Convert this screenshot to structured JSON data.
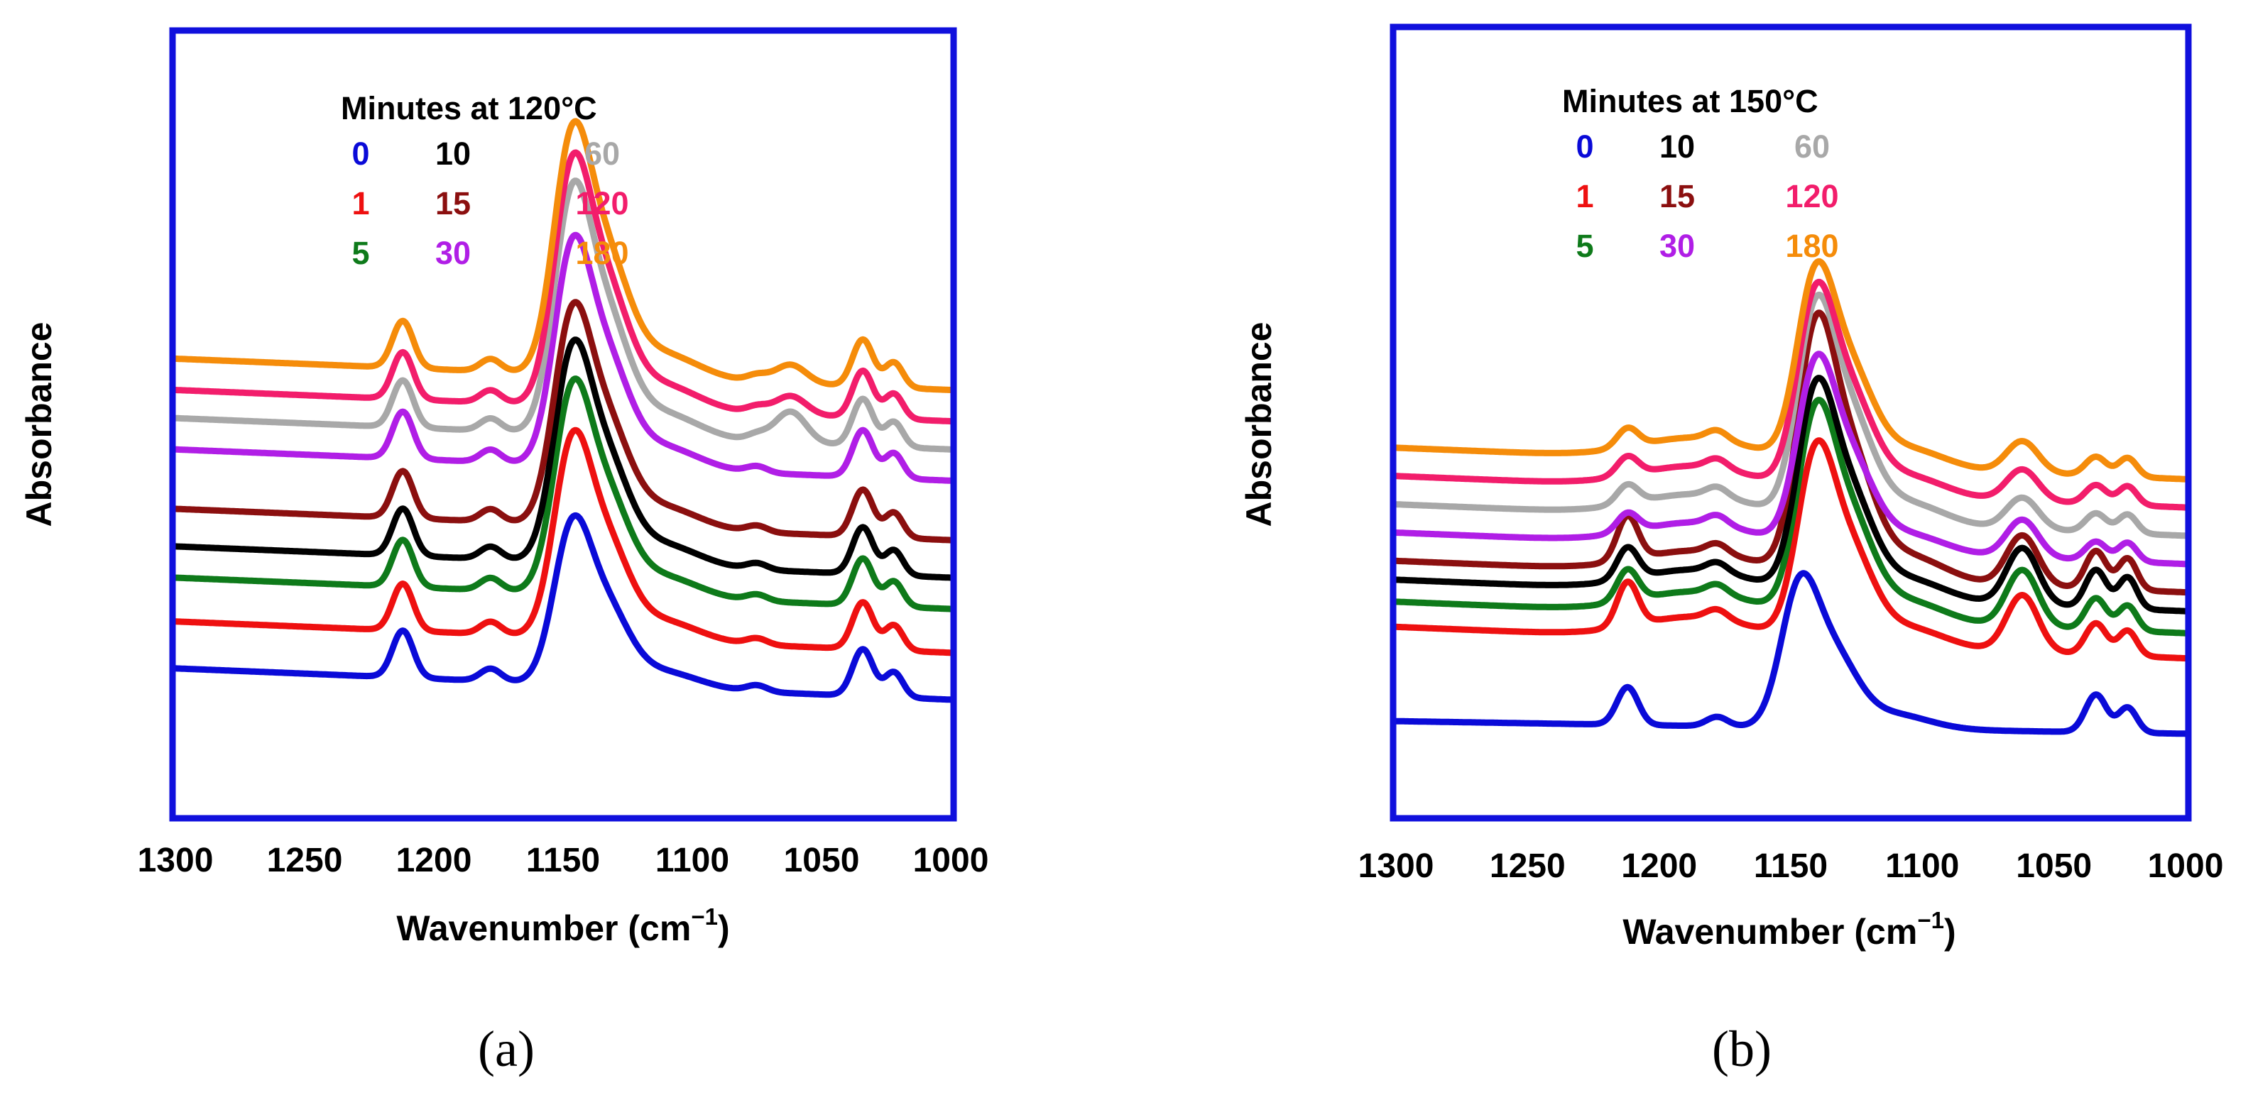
{
  "figure": {
    "colors": {
      "frame": "#1010dd",
      "legend_title": "#000000"
    }
  },
  "chart_data": [
    {
      "type": "line",
      "panel_label": "(a)",
      "title": "",
      "xlabel": "Wavenumber (cm⁻¹)",
      "xlabel_main": "Wavenumber (cm",
      "xlabel_sup": "−1",
      "xlabel_close": ")",
      "ylabel": "Absorbance",
      "xlim": [
        1300,
        1000
      ],
      "ylim": [
        0,
        12.5
      ],
      "x_ticks": [
        "1300",
        "1250",
        "1200",
        "1150",
        "1100",
        "1050",
        "1000"
      ],
      "y_ticks": [],
      "legend_title": "Minutes at 120°C",
      "legend_placement": "top-center",
      "series": [
        {
          "name": "0",
          "color": "#0a0ad8",
          "offset": 1.0,
          "base_start": 1.35,
          "base_end": 0.85,
          "peak_main": 2.2,
          "peak_1212": 0.75,
          "peak_1178": 0.2,
          "peak_1075": 0.1,
          "peak_1062": 0.0,
          "peak_1034": 0.75,
          "peak_1022": 0.4
        },
        {
          "name": "1",
          "color": "#ee1010",
          "offset": 1.75,
          "base_start": 1.35,
          "base_end": 0.85,
          "peak_main": 2.7,
          "peak_1212": 0.75,
          "peak_1178": 0.2,
          "peak_1075": 0.1,
          "peak_1062": 0.0,
          "peak_1034": 0.75,
          "peak_1022": 0.4
        },
        {
          "name": "5",
          "color": "#0e7a1a",
          "offset": 2.45,
          "base_start": 1.35,
          "base_end": 0.85,
          "peak_main": 2.8,
          "peak_1212": 0.75,
          "peak_1178": 0.2,
          "peak_1075": 0.1,
          "peak_1062": 0.0,
          "peak_1034": 0.75,
          "peak_1022": 0.4
        },
        {
          "name": "10",
          "color": "#000000",
          "offset": 2.95,
          "base_start": 1.35,
          "base_end": 0.85,
          "peak_main": 2.9,
          "peak_1212": 0.75,
          "peak_1178": 0.2,
          "peak_1075": 0.1,
          "peak_1062": 0.0,
          "peak_1034": 0.75,
          "peak_1022": 0.4
        },
        {
          "name": "15",
          "color": "#8b0f0f",
          "offset": 3.55,
          "base_start": 1.35,
          "base_end": 0.85,
          "peak_main": 2.9,
          "peak_1212": 0.75,
          "peak_1178": 0.2,
          "peak_1075": 0.1,
          "peak_1062": 0.0,
          "peak_1034": 0.75,
          "peak_1022": 0.4
        },
        {
          "name": "30",
          "color": "#b01ee6",
          "offset": 4.5,
          "base_start": 1.35,
          "base_end": 0.85,
          "peak_main": 3.0,
          "peak_1212": 0.75,
          "peak_1178": 0.2,
          "peak_1075": 0.1,
          "peak_1062": 0.0,
          "peak_1034": 0.75,
          "peak_1022": 0.4
        },
        {
          "name": "60",
          "color": "#a8a8a8",
          "offset": 5.0,
          "base_start": 1.35,
          "base_end": 0.85,
          "peak_main": 3.3,
          "peak_1212": 0.75,
          "peak_1178": 0.2,
          "peak_1075": 0.1,
          "peak_1062": 0.5,
          "peak_1034": 0.75,
          "peak_1022": 0.4
        },
        {
          "name": "120",
          "color": "#f21d6b",
          "offset": 5.45,
          "base_start": 1.35,
          "base_end": 0.85,
          "peak_main": 3.3,
          "peak_1212": 0.75,
          "peak_1178": 0.2,
          "peak_1075": 0.1,
          "peak_1062": 0.3,
          "peak_1034": 0.75,
          "peak_1022": 0.4
        },
        {
          "name": "180",
          "color": "#f58c0a",
          "offset": 5.95,
          "base_start": 1.35,
          "base_end": 0.85,
          "peak_main": 3.3,
          "peak_1212": 0.75,
          "peak_1178": 0.2,
          "peak_1075": 0.1,
          "peak_1062": 0.3,
          "peak_1034": 0.75,
          "peak_1022": 0.4
        }
      ]
    },
    {
      "type": "line",
      "panel_label": "(b)",
      "title": "",
      "xlabel": "Wavenumber (cm⁻¹)",
      "xlabel_main": "Wavenumber (cm",
      "xlabel_sup": "−1",
      "xlabel_close": ")",
      "ylabel": "Absorbance",
      "xlim": [
        1300,
        1000
      ],
      "ylim": [
        0,
        12.5
      ],
      "x_ticks": [
        "1300",
        "1250",
        "1200",
        "1150",
        "1100",
        "1050",
        "1000"
      ],
      "y_ticks": [],
      "legend_title": "Minutes at 150°C",
      "legend_placement": "top-center",
      "series": [
        {
          "name": "0",
          "color": "#0a0ad8",
          "offset": 0.7,
          "base_start": 0.8,
          "base_end": 0.6,
          "main_center": 1147,
          "peak_main": 2.0,
          "peak_1212": 0.6,
          "peak_1178": 0.15,
          "peak_1062": 0.0,
          "peak_1034": 0.6,
          "peak_1022": 0.4
        },
        {
          "name": "1",
          "color": "#ee1010",
          "offset": 2.1,
          "base_start": 0.9,
          "base_end": 0.4,
          "main_center": 1141,
          "peak_main": 2.6,
          "peak_1212": 0.7,
          "peak_1178": 0.15,
          "peak_1062": 0.9,
          "peak_1034": 0.5,
          "peak_1022": 0.4
        },
        {
          "name": "5",
          "color": "#0e7a1a",
          "offset": 2.5,
          "base_start": 0.9,
          "base_end": 0.4,
          "main_center": 1141,
          "peak_main": 2.8,
          "peak_1212": 0.5,
          "peak_1178": 0.15,
          "peak_1062": 0.9,
          "peak_1034": 0.5,
          "peak_1022": 0.4
        },
        {
          "name": "10",
          "color": "#000000",
          "offset": 2.85,
          "base_start": 0.9,
          "base_end": 0.4,
          "main_center": 1141,
          "peak_main": 2.8,
          "peak_1212": 0.5,
          "peak_1178": 0.15,
          "peak_1062": 0.9,
          "peak_1034": 0.6,
          "peak_1022": 0.5
        },
        {
          "name": "15",
          "color": "#8b0f0f",
          "offset": 3.15,
          "base_start": 0.9,
          "base_end": 0.4,
          "main_center": 1141,
          "peak_main": 3.4,
          "peak_1212": 0.7,
          "peak_1178": 0.15,
          "peak_1062": 0.8,
          "peak_1034": 0.6,
          "peak_1022": 0.5
        },
        {
          "name": "30",
          "color": "#b01ee6",
          "offset": 3.6,
          "base_start": 0.9,
          "base_end": 0.4,
          "main_center": 1141,
          "peak_main": 2.5,
          "peak_1212": 0.3,
          "peak_1178": 0.15,
          "peak_1062": 0.6,
          "peak_1034": 0.3,
          "peak_1022": 0.3
        },
        {
          "name": "60",
          "color": "#a8a8a8",
          "offset": 4.05,
          "base_start": 0.9,
          "base_end": 0.4,
          "main_center": 1141,
          "peak_main": 2.9,
          "peak_1212": 0.3,
          "peak_1178": 0.15,
          "peak_1062": 0.5,
          "peak_1034": 0.3,
          "peak_1022": 0.3
        },
        {
          "name": "120",
          "color": "#f21d6b",
          "offset": 4.5,
          "base_start": 0.9,
          "base_end": 0.4,
          "main_center": 1141,
          "peak_main": 2.7,
          "peak_1212": 0.3,
          "peak_1178": 0.15,
          "peak_1062": 0.5,
          "peak_1034": 0.3,
          "peak_1022": 0.3
        },
        {
          "name": "180",
          "color": "#f58c0a",
          "offset": 4.95,
          "base_start": 0.9,
          "base_end": 0.4,
          "main_center": 1141,
          "peak_main": 2.6,
          "peak_1212": 0.3,
          "peak_1178": 0.15,
          "peak_1062": 0.5,
          "peak_1034": 0.3,
          "peak_1022": 0.3
        }
      ]
    }
  ]
}
